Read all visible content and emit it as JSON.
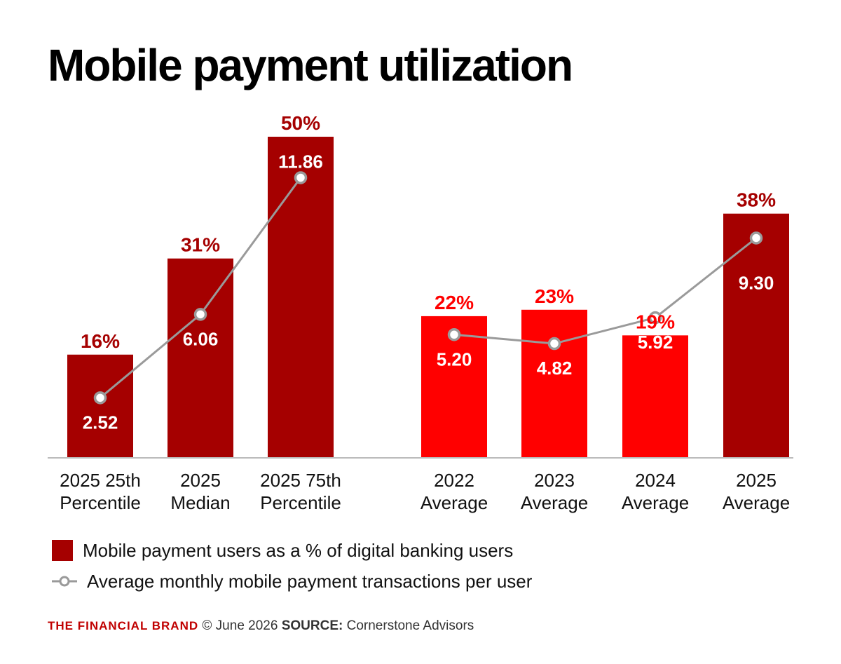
{
  "title": "Mobile payment utilization",
  "colors": {
    "dark_red": "#a50000",
    "bright_red": "#ff0000",
    "line_gray": "#9a9a9a",
    "axis": "#bbbbbb"
  },
  "chart_data": {
    "type": "bar",
    "categories": [
      [
        "2025 25th",
        "Percentile"
      ],
      [
        "2025",
        "Median"
      ],
      [
        "2025 75th",
        "Percentile"
      ],
      [
        "2022",
        "Average"
      ],
      [
        "2023",
        "Average"
      ],
      [
        "2024",
        "Average"
      ],
      [
        "2025",
        "Average"
      ]
    ],
    "series": [
      {
        "name": "Mobile payment users as a % of digital banking users",
        "kind": "bar",
        "values": [
          16,
          31,
          50,
          22,
          23,
          19,
          38
        ],
        "labels": [
          "16%",
          "31%",
          "50%",
          "22%",
          "23%",
          "19%",
          "38%"
        ],
        "colors": [
          "#a50000",
          "#a50000",
          "#a50000",
          "#ff0000",
          "#ff0000",
          "#ff0000",
          "#a50000"
        ]
      },
      {
        "name": "Average monthly mobile payment transactions per user",
        "kind": "line",
        "values": [
          2.52,
          6.06,
          11.86,
          5.2,
          4.82,
          5.92,
          9.3
        ],
        "labels": [
          "2.52",
          "6.06",
          "11.86",
          "5.20",
          "4.82",
          "5.92",
          "9.30"
        ],
        "segments": [
          [
            0,
            2
          ],
          [
            3,
            6
          ]
        ]
      }
    ],
    "ylim": [
      0,
      50
    ],
    "grid": false,
    "legend_position": "bottom-left"
  },
  "legend": {
    "bar_text": "Mobile payment users as a % of digital banking users",
    "line_text": "Average monthly mobile payment transactions per user"
  },
  "footer": {
    "brand": "THE FINANCIAL BRAND",
    "copyright": "© June 2026",
    "source_label": "SOURCE:",
    "source": "Cornerstone Advisors"
  }
}
